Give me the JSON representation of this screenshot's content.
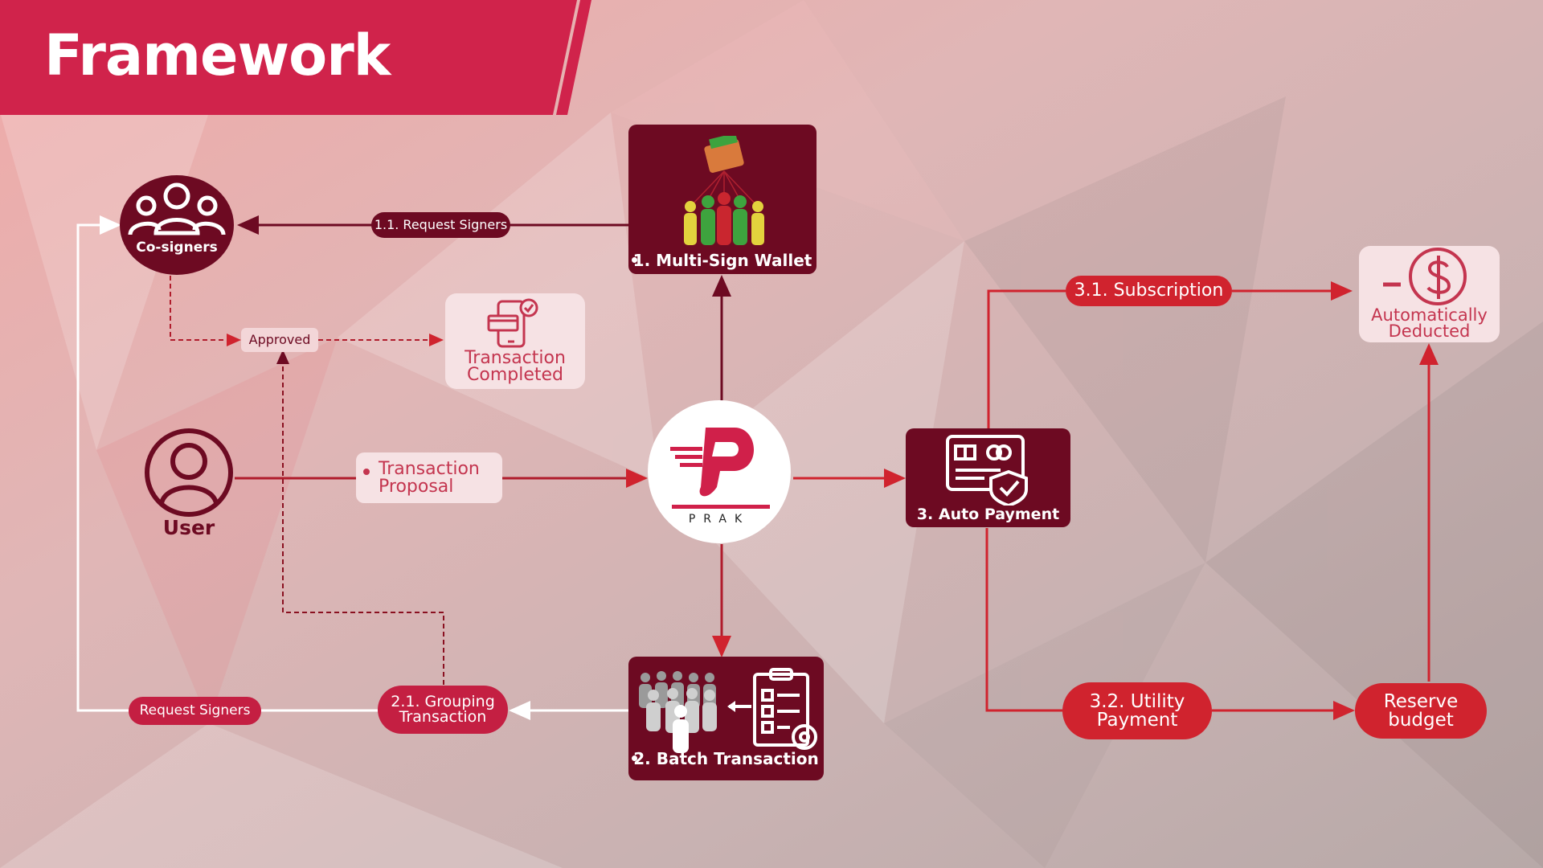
{
  "slide": {
    "title": "Framework"
  },
  "colors": {
    "maroon": "#6d0a22",
    "red": "#d0232e",
    "brand": "#d0204a",
    "light_box": "#f6e2e4"
  },
  "nodes": {
    "cosigners": {
      "label": "Co-signers",
      "icon": "group-icon"
    },
    "user": {
      "label": "User",
      "icon": "user-icon"
    },
    "prak": {
      "label": "PRAK",
      "icon": "prak-logo"
    },
    "multisig": {
      "label": "1. Multi-Sign Wallet",
      "icon": "wallet-people-icon"
    },
    "batch": {
      "label": "2. Batch Transaction",
      "icon": "crowd-checklist-icon"
    },
    "autopay": {
      "label": "3. Auto Payment",
      "icon": "card-shield-icon"
    },
    "tx_completed": {
      "line1": "Transaction",
      "line2": "Completed",
      "icon": "phone-check-icon"
    },
    "auto_deducted": {
      "line1": "Automatically",
      "line2": "Deducted",
      "icon": "minus-dollar-icon"
    }
  },
  "labels": {
    "request_signers_1": "1.1. Request Signers",
    "approved": "Approved",
    "transaction_proposal_1": "Transaction",
    "transaction_proposal_2": "Proposal",
    "grouping_1": "2.1. Grouping",
    "grouping_2": "Transaction",
    "request_signers_2": "Request Signers",
    "subscription": "3.1. Subscription",
    "utility_1": "3.2. Utility",
    "utility_2": "Payment",
    "reserve_1": "Reserve",
    "reserve_2": "budget"
  }
}
